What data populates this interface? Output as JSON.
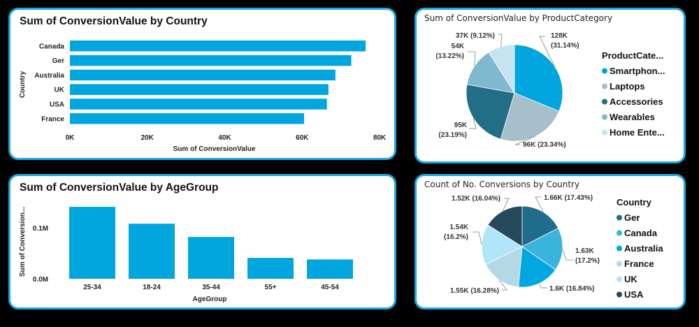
{
  "colors": {
    "bar": "#01A6DE",
    "panel_border": "#1BA8E0",
    "leader": "#999999"
  },
  "chart_data": [
    {
      "id": "country_bar",
      "type": "bar",
      "orientation": "horizontal",
      "title": "Sum of ConversionValue by Country",
      "xlabel": "Sum of ConversionValue",
      "ylabel": "Country",
      "categories": [
        "Canada",
        "Ger",
        "Australia",
        "UK",
        "USA",
        "France"
      ],
      "values": [
        76400,
        72700,
        68600,
        66800,
        66400,
        60500
      ],
      "xlim": [
        0,
        80000
      ],
      "xticks": [
        0,
        20000,
        40000,
        60000,
        80000
      ],
      "xtick_labels": [
        "0K",
        "20K",
        "40K",
        "60K",
        "80K"
      ],
      "grid": false
    },
    {
      "id": "agegroup_bar",
      "type": "bar",
      "orientation": "vertical",
      "title": "Sum of ConversionValue by AgeGroup",
      "xlabel": "AgeGroup",
      "ylabel": "Sum of Conversion...",
      "categories": [
        "25-34",
        "18-24",
        "35-44",
        "55+",
        "45-54"
      ],
      "values": [
        141000,
        108000,
        82000,
        41000,
        38000
      ],
      "ylim": [
        0,
        141000
      ],
      "yticks": [
        0,
        100000
      ],
      "ytick_labels": [
        "0.0M",
        "0.1M"
      ],
      "grid": false
    },
    {
      "id": "productcategory_pie",
      "type": "pie",
      "title": "Sum of ConversionValue by ProductCategory",
      "legend_title": "ProductCate...",
      "legend_position": "right",
      "slices": [
        {
          "name": "Smartphones",
          "legend_label": "Smartphon...",
          "value": 128000,
          "percent": 31.14,
          "label": "128K (31.14%)",
          "label_lines": [
            "128K",
            "(31.14%)"
          ],
          "color": "#01A6DE"
        },
        {
          "name": "Laptops",
          "legend_label": "Laptops",
          "value": 96000,
          "percent": 23.34,
          "label": "96K (23.34%)",
          "label_lines": [
            "96K (23.34%)"
          ],
          "color": "#A6BFCA"
        },
        {
          "name": "Accessories",
          "legend_label": "Accessories",
          "value": 95000,
          "percent": 23.19,
          "label": "95K (23.19%)",
          "label_lines": [
            "95K",
            "(23.19%)"
          ],
          "color": "#236E87"
        },
        {
          "name": "Wearables",
          "legend_label": "Wearables",
          "value": 54000,
          "percent": 13.22,
          "label": "54K (13.22%)",
          "label_lines": [
            "54K",
            "(13.22%)"
          ],
          "color": "#7EB9CF"
        },
        {
          "name": "Home Entertainment",
          "legend_label": "Home Ente...",
          "value": 37000,
          "percent": 9.12,
          "label": "37K (9.12%)",
          "label_lines": [
            "37K (9.12%)"
          ],
          "color": "#C6E4EF"
        }
      ]
    },
    {
      "id": "country_pie",
      "type": "pie",
      "title": "Count of No. Conversions by Country",
      "legend_title": "Country",
      "legend_position": "right",
      "slices": [
        {
          "name": "Ger",
          "legend_label": "Ger",
          "value": 1660,
          "percent": 17.43,
          "label": "1.66K (17.43%)",
          "label_lines": [
            "1.66K (17.43%)"
          ],
          "color": "#1F6D8B"
        },
        {
          "name": "Canada",
          "legend_label": "Canada",
          "value": 1630,
          "percent": 17.2,
          "label": "1.63K (17.2%)",
          "label_lines": [
            "1.63K",
            "(17.2%)"
          ],
          "color": "#3AB3DD"
        },
        {
          "name": "Australia",
          "legend_label": "Australia",
          "value": 1600,
          "percent": 16.84,
          "label": "1.6K (16.84%)",
          "label_lines": [
            "1.6K (16.84%)"
          ],
          "color": "#02A7DF"
        },
        {
          "name": "France",
          "legend_label": "France",
          "value": 1550,
          "percent": 16.28,
          "label": "1.55K (16.28%)",
          "label_lines": [
            "1.55K (16.28%)"
          ],
          "color": "#B3D9E6"
        },
        {
          "name": "UK",
          "legend_label": "UK",
          "value": 1540,
          "percent": 16.2,
          "label": "1.54K (16.2%)",
          "label_lines": [
            "1.54K",
            "(16.2%)"
          ],
          "color": "#B0E6F7"
        },
        {
          "name": "USA",
          "legend_label": "USA",
          "value": 1520,
          "percent": 16.04,
          "label": "1.52K (16.04%)",
          "label_lines": [
            "1.52K (16.04%)"
          ],
          "color": "#25495A"
        }
      ]
    }
  ]
}
